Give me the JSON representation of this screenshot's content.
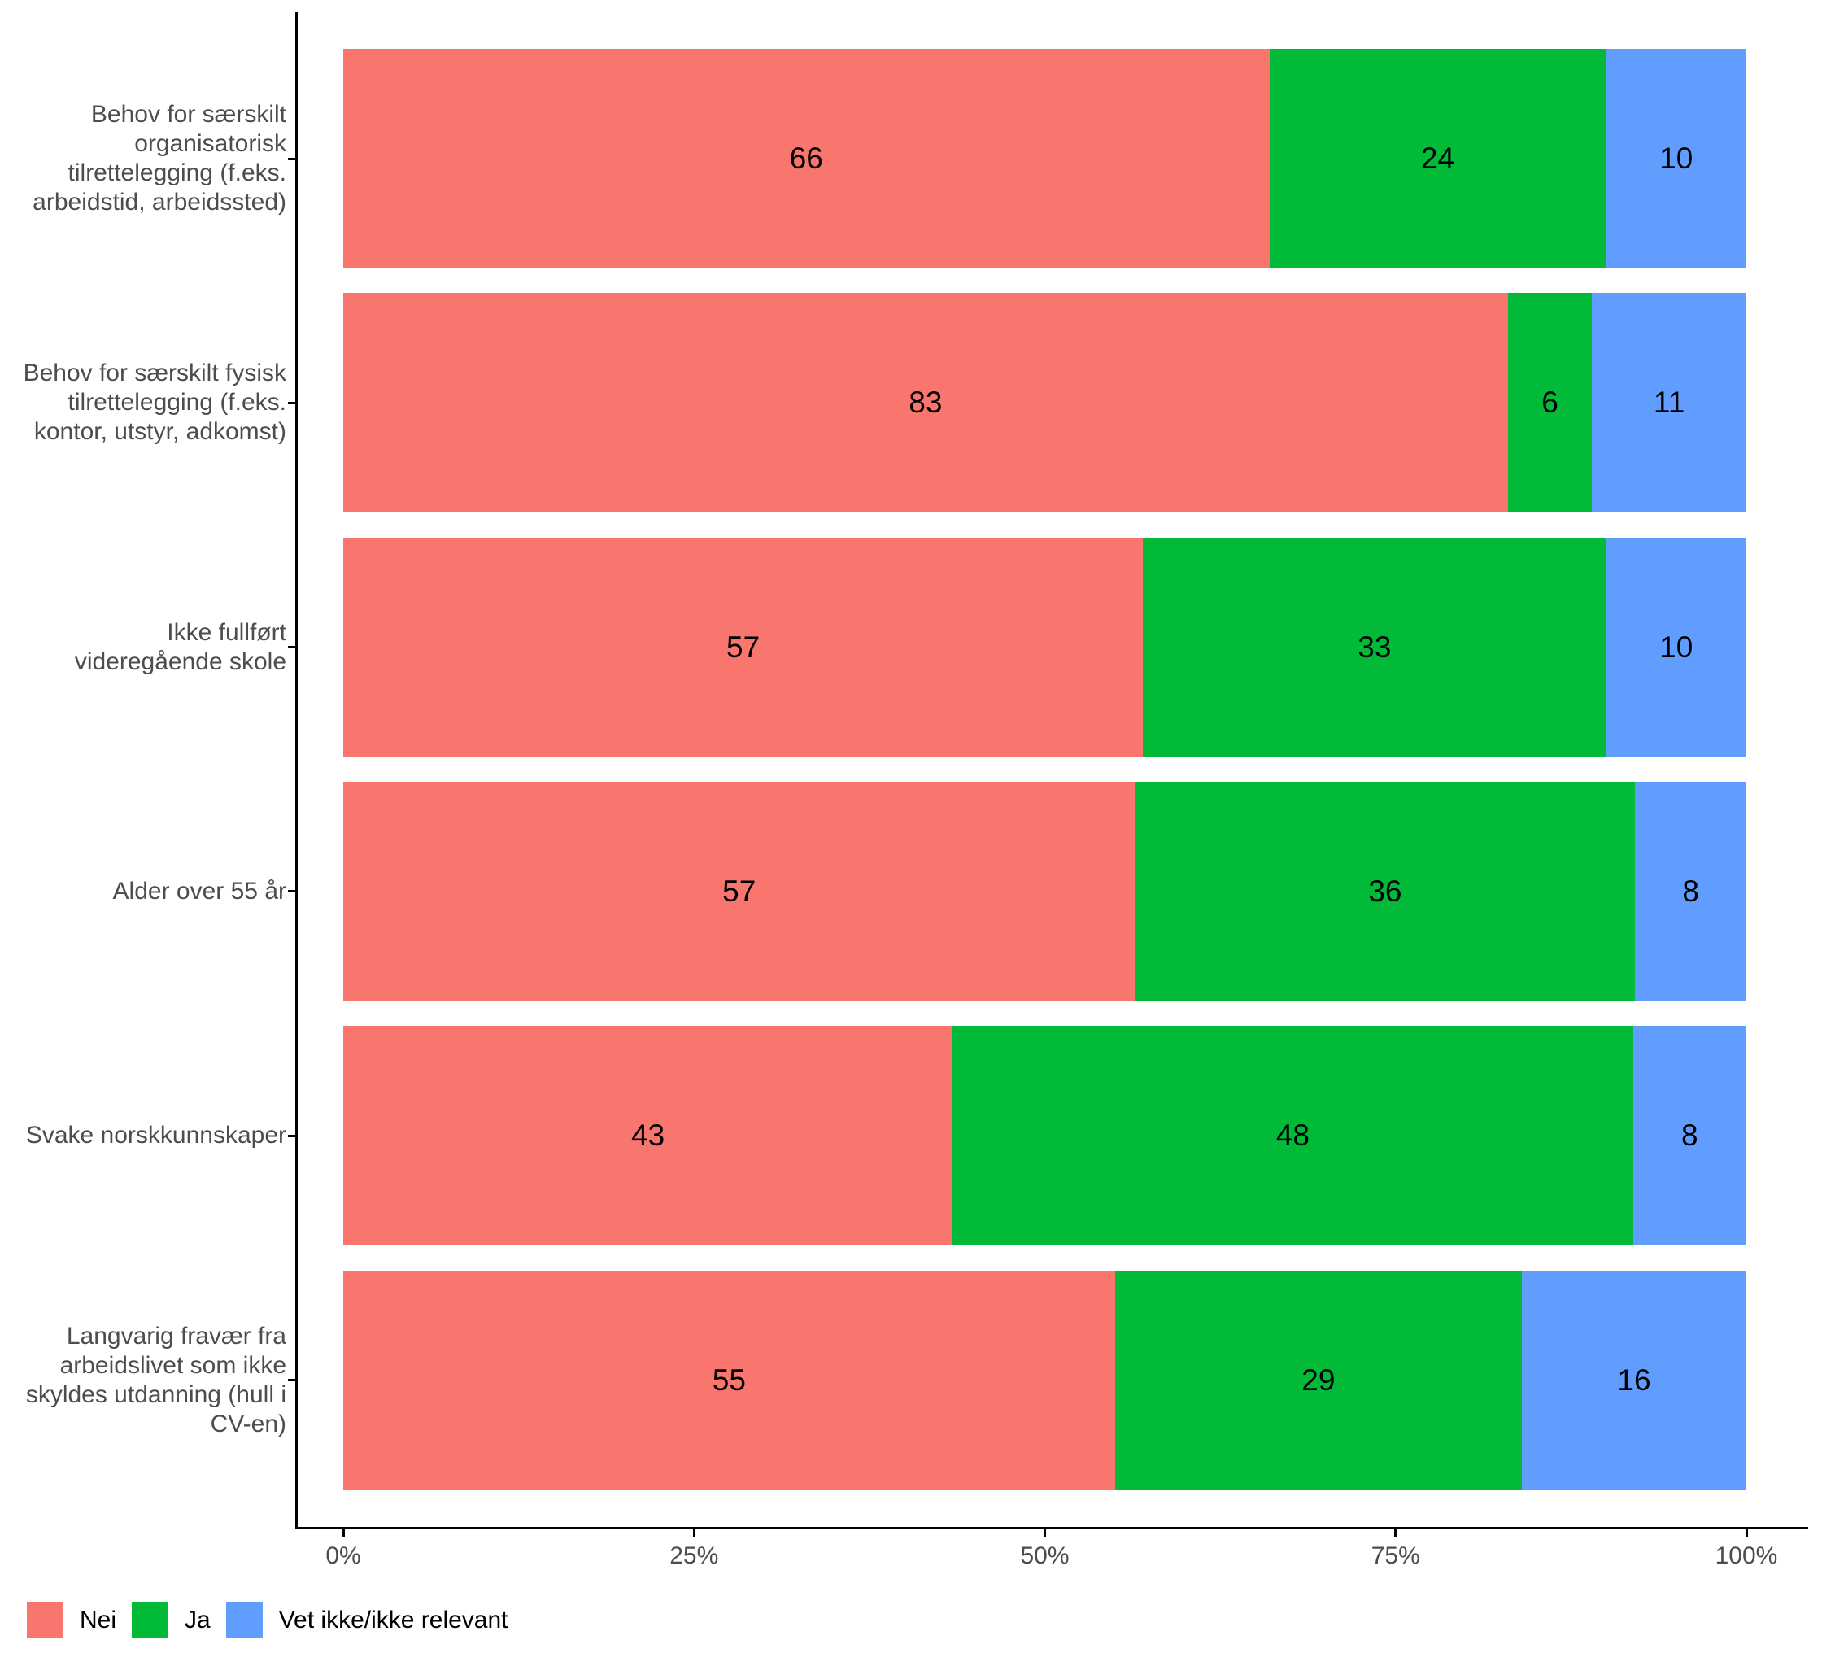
{
  "chart_data": {
    "type": "bar",
    "orientation": "horizontal",
    "stacked": true,
    "title": "",
    "xlabel": "",
    "ylabel": "",
    "grid": false,
    "legend_position": "bottom-left",
    "categories": [
      {
        "label": "Behov for særskilt organisatorisk tilrettelegging (f.eks. arbeidstid, arbeidssted)",
        "label_lines": [
          "Behov for særskilt",
          "organisatorisk",
          "tilrettelegging (f.eks.",
          "arbeidstid, arbeidssted)"
        ]
      },
      {
        "label": "Behov for særskilt fysisk tilrettelegging (f.eks. kontor, utstyr, adkomst)",
        "label_lines": [
          "Behov for særskilt fysisk",
          "tilrettelegging (f.eks.",
          "kontor, utstyr, adkomst)"
        ]
      },
      {
        "label": "Ikke fullført videregående skole",
        "label_lines": [
          "Ikke fullført",
          "videregående skole"
        ]
      },
      {
        "label": "Alder over 55 år",
        "label_lines": [
          "Alder over 55 år"
        ]
      },
      {
        "label": "Svake norskkunnskaper",
        "label_lines": [
          "Svake norskkunnskaper"
        ]
      },
      {
        "label": "Langvarig fravær fra arbeidslivet som ikke skyldes utdanning (hull i CV-en)",
        "label_lines": [
          "Langvarig fravær fra",
          "arbeidslivet som ikke",
          "skyldes utdanning (hull i",
          "CV-en)"
        ]
      }
    ],
    "series": [
      {
        "name": "Nei",
        "color": "#F8766D",
        "values": [
          66,
          83,
          57,
          57,
          43,
          55
        ]
      },
      {
        "name": "Ja",
        "color": "#00BA38",
        "values": [
          24,
          6,
          33,
          36,
          48,
          29
        ]
      },
      {
        "name": "Vet ikke/ikke relevant",
        "color": "#619CFF",
        "values": [
          10,
          11,
          10,
          8,
          8,
          16
        ]
      }
    ],
    "x_axis": {
      "range": [
        0,
        100
      ],
      "tick_values": [
        0,
        25,
        50,
        75,
        100
      ],
      "tick_labels": [
        "0%",
        "25%",
        "50%",
        "75%",
        "100%"
      ]
    },
    "legend_entries": [
      "Nei",
      "Ja",
      "Vet ikke/ikke relevant"
    ],
    "colors": {
      "axis_text": "#4D4D4D",
      "axis_line": "#000000",
      "value_label": "#000000",
      "background": "#FFFFFF"
    }
  }
}
